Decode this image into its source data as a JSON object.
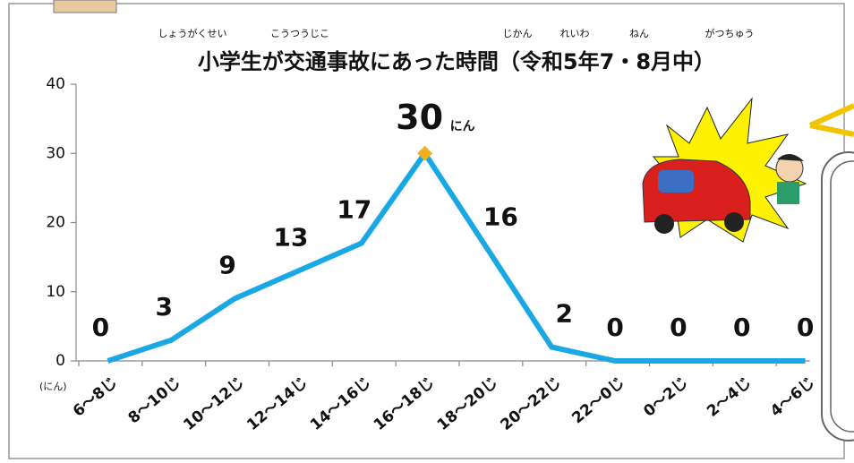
{
  "chart_data": {
    "type": "line",
    "title": "小学生が交通事故にあった時間（令和5年7・8月中）",
    "ruby": [
      "しょうがくせい",
      "こうつうじこ",
      "じかん",
      "れいわ",
      "ねん",
      "がつちゅう"
    ],
    "y_unit": "(にん)",
    "peak_unit": "にん",
    "categories": [
      "6～8じ",
      "8～10じ",
      "10～12じ",
      "12～14じ",
      "14～16じ",
      "16～18じ",
      "18～20じ",
      "20～22じ",
      "22～0じ",
      "0～2じ",
      "2～4じ",
      "4～6じ"
    ],
    "series": [
      {
        "color": "#1aa7e6",
        "values": [
          0,
          3,
          9,
          13,
          17,
          30,
          16,
          2,
          0,
          0,
          0,
          0
        ]
      }
    ],
    "peak_color": "#f2b01e",
    "peak_label_color": "#e8141b",
    "ylim": [
      0,
      40
    ],
    "yticks": [
      0,
      10,
      20,
      30,
      40
    ],
    "grid": false
  }
}
